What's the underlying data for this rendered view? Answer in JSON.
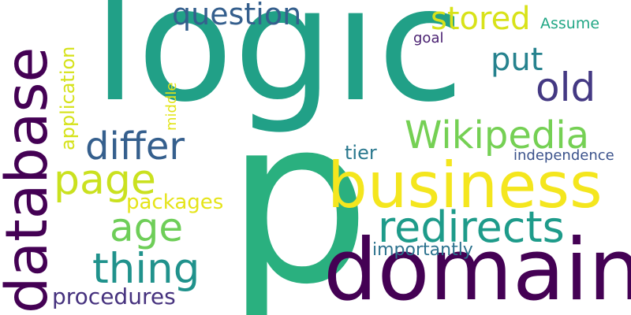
{
  "words": {
    "logic": {
      "text": "logic",
      "color": "#21a087"
    },
    "p": {
      "text": "p",
      "color": "#2ab07f"
    },
    "database": {
      "text": "database",
      "color": "#440154"
    },
    "domain": {
      "text": "domain",
      "color": "#440154"
    },
    "business": {
      "text": "business",
      "color": "#f4e61e"
    },
    "redirects": {
      "text": "redirects",
      "color": "#1e9b8a"
    },
    "wikipedia": {
      "text": "Wikipedia",
      "color": "#75d054"
    },
    "differ": {
      "text": "differ",
      "color": "#355f8d"
    },
    "page": {
      "text": "page",
      "color": "#cae11f"
    },
    "age": {
      "text": "age",
      "color": "#6ece58"
    },
    "thing": {
      "text": "thing",
      "color": "#20928c"
    },
    "question": {
      "text": "question",
      "color": "#355f8d"
    },
    "old": {
      "text": "old",
      "color": "#443983"
    },
    "stored": {
      "text": "stored",
      "color": "#d8e219"
    },
    "put": {
      "text": "put",
      "color": "#26828e"
    },
    "application": {
      "text": "application",
      "color": "#d5e21a"
    },
    "procedures": {
      "text": "procedures",
      "color": "#46327e"
    },
    "packages": {
      "text": "packages",
      "color": "#e5e419"
    },
    "middle": {
      "text": "middle",
      "color": "#e2e418"
    },
    "tier": {
      "text": "tier",
      "color": "#2a788e"
    },
    "importantly": {
      "text": "importantly",
      "color": "#2c728e"
    },
    "independence": {
      "text": "independence",
      "color": "#3b528b"
    },
    "assume": {
      "text": "Assume",
      "color": "#22a785"
    },
    "goal": {
      "text": "goal",
      "color": "#481f70"
    }
  }
}
